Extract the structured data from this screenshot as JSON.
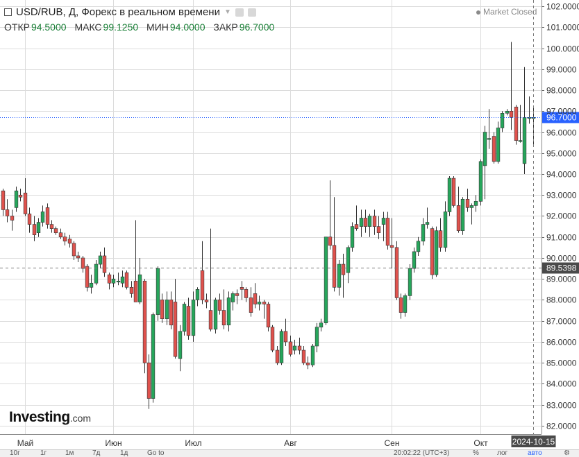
{
  "header": {
    "title": "USD/RUB, Д, Форекс в реальном времени",
    "ohlc": [
      {
        "label": "ОТКР",
        "value": "94.5000"
      },
      {
        "label": "МАКС",
        "value": "99.1250"
      },
      {
        "label": "МИН",
        "value": "94.0000"
      },
      {
        "label": "ЗАКР",
        "value": "96.7000"
      }
    ],
    "market_status": "Market Closed"
  },
  "logo": {
    "brand": "Investing",
    "domain": ".com"
  },
  "bottom_bar": {
    "ranges": [
      "10г",
      "1г",
      "1м",
      "7д",
      "1д"
    ],
    "goto": "Go to",
    "time": "20:02:22 (UTC+3)",
    "percent": "%",
    "log": "лог",
    "auto": "авто"
  },
  "colors": {
    "up": "#26a65b",
    "down": "#e0524d",
    "wick": "#333333",
    "grid": "#dcdcdc",
    "price_label": "#2962ff"
  },
  "icons": [
    "settings-icon",
    "gear-icon"
  ],
  "chart_data": {
    "type": "candlestick",
    "symbol": "USD/RUB",
    "interval": "Д",
    "ylim": [
      81.6,
      102.3
    ],
    "y_ticks": [
      82.0,
      83.0,
      84.0,
      85.0,
      86.0,
      87.0,
      88.0,
      89.0,
      90.0,
      91.0,
      92.0,
      93.0,
      94.0,
      95.0,
      96.0,
      97.0,
      98.0,
      99.0,
      100.0,
      101.0,
      102.0
    ],
    "x_tick_labels": [
      "Май",
      "Июн",
      "Июл",
      "Авг",
      "Сен",
      "Окт"
    ],
    "x_tick_index": [
      5,
      25,
      43,
      65,
      88,
      108
    ],
    "crosshair": {
      "x_label": "2024-10-15",
      "x_index": 120,
      "y_value": 89.5398,
      "y_label": "89.5398"
    },
    "last_price": {
      "value": 96.7,
      "label": "96.7000"
    },
    "candles": [
      {
        "o": 93.2,
        "h": 93.3,
        "l": 92.0,
        "c": 92.3
      },
      {
        "o": 92.3,
        "h": 92.8,
        "l": 91.7,
        "c": 92.0
      },
      {
        "o": 92.0,
        "h": 92.3,
        "l": 91.3,
        "c": 91.8
      },
      {
        "o": 92.4,
        "h": 93.4,
        "l": 92.2,
        "c": 93.2
      },
      {
        "o": 93.0,
        "h": 93.3,
        "l": 92.7,
        "c": 92.9
      },
      {
        "o": 93.1,
        "h": 93.8,
        "l": 92.0,
        "c": 92.1
      },
      {
        "o": 92.1,
        "h": 92.4,
        "l": 91.2,
        "c": 91.6
      },
      {
        "o": 91.6,
        "h": 92.0,
        "l": 90.8,
        "c": 91.1
      },
      {
        "o": 91.2,
        "h": 91.9,
        "l": 91.0,
        "c": 91.7
      },
      {
        "o": 91.7,
        "h": 92.5,
        "l": 91.5,
        "c": 92.2
      },
      {
        "o": 92.4,
        "h": 92.6,
        "l": 91.4,
        "c": 91.6
      },
      {
        "o": 91.6,
        "h": 91.8,
        "l": 91.2,
        "c": 91.4
      },
      {
        "o": 91.4,
        "h": 91.5,
        "l": 91.1,
        "c": 91.2
      },
      {
        "o": 91.2,
        "h": 91.4,
        "l": 90.9,
        "c": 91.0
      },
      {
        "o": 91.0,
        "h": 91.2,
        "l": 90.6,
        "c": 90.8
      },
      {
        "o": 90.9,
        "h": 91.1,
        "l": 90.5,
        "c": 90.7
      },
      {
        "o": 90.7,
        "h": 90.8,
        "l": 89.9,
        "c": 90.1
      },
      {
        "o": 90.1,
        "h": 90.3,
        "l": 89.8,
        "c": 90.0
      },
      {
        "o": 90.0,
        "h": 90.1,
        "l": 89.3,
        "c": 89.5
      },
      {
        "o": 89.6,
        "h": 89.7,
        "l": 88.4,
        "c": 88.6
      },
      {
        "o": 88.6,
        "h": 89.2,
        "l": 88.3,
        "c": 88.8
      },
      {
        "o": 88.8,
        "h": 89.9,
        "l": 88.7,
        "c": 89.7
      },
      {
        "o": 89.7,
        "h": 90.3,
        "l": 89.5,
        "c": 90.1
      },
      {
        "o": 90.1,
        "h": 90.5,
        "l": 89.1,
        "c": 89.3
      },
      {
        "o": 89.2,
        "h": 89.3,
        "l": 88.5,
        "c": 88.8
      },
      {
        "o": 88.8,
        "h": 89.2,
        "l": 88.6,
        "c": 89.0
      },
      {
        "o": 88.9,
        "h": 89.3,
        "l": 88.7,
        "c": 88.9
      },
      {
        "o": 88.8,
        "h": 89.4,
        "l": 88.6,
        "c": 89.1
      },
      {
        "o": 89.3,
        "h": 89.4,
        "l": 88.5,
        "c": 88.6
      },
      {
        "o": 88.6,
        "h": 88.9,
        "l": 88.1,
        "c": 88.3
      },
      {
        "o": 88.9,
        "h": 91.8,
        "l": 87.9,
        "c": 87.9
      },
      {
        "o": 87.9,
        "h": 90.0,
        "l": 87.8,
        "c": 89.2
      },
      {
        "o": 88.9,
        "h": 89.0,
        "l": 84.5,
        "c": 85.0
      },
      {
        "o": 85.0,
        "h": 85.4,
        "l": 82.8,
        "c": 83.3
      },
      {
        "o": 83.3,
        "h": 87.4,
        "l": 83.1,
        "c": 87.3
      },
      {
        "o": 87.3,
        "h": 89.6,
        "l": 87.0,
        "c": 89.5
      },
      {
        "o": 88.0,
        "h": 88.3,
        "l": 86.9,
        "c": 87.1
      },
      {
        "o": 87.1,
        "h": 88.4,
        "l": 86.8,
        "c": 88.0
      },
      {
        "o": 88.0,
        "h": 88.4,
        "l": 86.6,
        "c": 86.8
      },
      {
        "o": 87.9,
        "h": 89.0,
        "l": 85.2,
        "c": 85.3
      },
      {
        "o": 85.2,
        "h": 86.8,
        "l": 84.6,
        "c": 86.5
      },
      {
        "o": 86.5,
        "h": 87.9,
        "l": 86.3,
        "c": 87.8
      },
      {
        "o": 87.7,
        "h": 88.1,
        "l": 86.1,
        "c": 86.3
      },
      {
        "o": 86.3,
        "h": 88.4,
        "l": 86.0,
        "c": 88.0
      },
      {
        "o": 88.0,
        "h": 88.6,
        "l": 87.7,
        "c": 88.5
      },
      {
        "o": 89.4,
        "h": 90.8,
        "l": 87.8,
        "c": 88.0
      },
      {
        "o": 88.0,
        "h": 88.3,
        "l": 87.6,
        "c": 87.9
      },
      {
        "o": 87.5,
        "h": 91.4,
        "l": 86.5,
        "c": 86.6
      },
      {
        "o": 86.6,
        "h": 88.1,
        "l": 86.4,
        "c": 88.0
      },
      {
        "o": 88.0,
        "h": 88.3,
        "l": 87.3,
        "c": 87.5
      },
      {
        "o": 87.5,
        "h": 88.5,
        "l": 86.6,
        "c": 86.8
      },
      {
        "o": 86.8,
        "h": 88.4,
        "l": 86.5,
        "c": 88.1
      },
      {
        "o": 87.9,
        "h": 88.4,
        "l": 87.5,
        "c": 88.3
      },
      {
        "o": 88.3,
        "h": 88.5,
        "l": 87.8,
        "c": 88.2
      },
      {
        "o": 88.6,
        "h": 88.9,
        "l": 88.0,
        "c": 88.5
      },
      {
        "o": 88.5,
        "h": 88.6,
        "l": 87.9,
        "c": 88.1
      },
      {
        "o": 88.1,
        "h": 88.6,
        "l": 87.2,
        "c": 87.4
      },
      {
        "o": 88.3,
        "h": 88.8,
        "l": 87.6,
        "c": 87.8
      },
      {
        "o": 87.8,
        "h": 88.2,
        "l": 87.5,
        "c": 87.9
      },
      {
        "o": 87.9,
        "h": 88.0,
        "l": 87.1,
        "c": 87.8
      },
      {
        "o": 87.8,
        "h": 87.9,
        "l": 86.5,
        "c": 86.7
      },
      {
        "o": 86.7,
        "h": 86.8,
        "l": 85.5,
        "c": 85.6
      },
      {
        "o": 85.6,
        "h": 85.8,
        "l": 84.9,
        "c": 85.0
      },
      {
        "o": 85.0,
        "h": 86.6,
        "l": 84.9,
        "c": 86.5
      },
      {
        "o": 86.5,
        "h": 87.1,
        "l": 85.8,
        "c": 86.0
      },
      {
        "o": 86.0,
        "h": 86.3,
        "l": 85.3,
        "c": 85.4
      },
      {
        "o": 85.6,
        "h": 86.1,
        "l": 85.4,
        "c": 85.8
      },
      {
        "o": 85.8,
        "h": 86.2,
        "l": 85.4,
        "c": 85.6
      },
      {
        "o": 85.6,
        "h": 85.8,
        "l": 84.9,
        "c": 85.0
      },
      {
        "o": 85.0,
        "h": 85.3,
        "l": 84.7,
        "c": 84.9
      },
      {
        "o": 84.9,
        "h": 85.9,
        "l": 84.8,
        "c": 85.8
      },
      {
        "o": 85.8,
        "h": 86.9,
        "l": 85.5,
        "c": 86.7
      },
      {
        "o": 86.7,
        "h": 87.1,
        "l": 86.5,
        "c": 86.9
      },
      {
        "o": 86.9,
        "h": 91.0,
        "l": 86.8,
        "c": 91.0
      },
      {
        "o": 91.0,
        "h": 93.7,
        "l": 90.4,
        "c": 90.6
      },
      {
        "o": 90.6,
        "h": 92.9,
        "l": 88.4,
        "c": 88.6
      },
      {
        "o": 88.6,
        "h": 89.9,
        "l": 88.2,
        "c": 89.7
      },
      {
        "o": 89.7,
        "h": 90.2,
        "l": 88.1,
        "c": 89.2
      },
      {
        "o": 89.3,
        "h": 90.6,
        "l": 88.8,
        "c": 90.5
      },
      {
        "o": 90.5,
        "h": 91.7,
        "l": 90.3,
        "c": 91.5
      },
      {
        "o": 91.6,
        "h": 92.5,
        "l": 91.3,
        "c": 91.4
      },
      {
        "o": 91.5,
        "h": 92.3,
        "l": 91.0,
        "c": 91.9
      },
      {
        "o": 91.9,
        "h": 92.3,
        "l": 91.2,
        "c": 91.5
      },
      {
        "o": 91.5,
        "h": 92.1,
        "l": 91.0,
        "c": 92.0
      },
      {
        "o": 92.0,
        "h": 92.3,
        "l": 91.1,
        "c": 91.5
      },
      {
        "o": 91.5,
        "h": 92.0,
        "l": 90.9,
        "c": 91.2
      },
      {
        "o": 91.6,
        "h": 92.2,
        "l": 90.8,
        "c": 91.9
      },
      {
        "o": 91.9,
        "h": 92.2,
        "l": 90.4,
        "c": 90.6
      },
      {
        "o": 90.6,
        "h": 91.9,
        "l": 89.5,
        "c": 90.5
      },
      {
        "o": 90.5,
        "h": 90.8,
        "l": 88.0,
        "c": 88.1
      },
      {
        "o": 88.1,
        "h": 88.3,
        "l": 87.1,
        "c": 87.4
      },
      {
        "o": 87.4,
        "h": 88.3,
        "l": 87.2,
        "c": 88.2
      },
      {
        "o": 88.2,
        "h": 89.7,
        "l": 88.0,
        "c": 89.5
      },
      {
        "o": 89.5,
        "h": 90.5,
        "l": 89.3,
        "c": 90.3
      },
      {
        "o": 90.3,
        "h": 91.0,
        "l": 90.1,
        "c": 90.8
      },
      {
        "o": 90.8,
        "h": 91.9,
        "l": 90.6,
        "c": 91.6
      },
      {
        "o": 91.6,
        "h": 92.4,
        "l": 91.4,
        "c": 91.7
      },
      {
        "o": 91.4,
        "h": 91.5,
        "l": 89.0,
        "c": 89.2
      },
      {
        "o": 89.2,
        "h": 91.5,
        "l": 89.1,
        "c": 91.3
      },
      {
        "o": 91.3,
        "h": 91.9,
        "l": 90.3,
        "c": 90.5
      },
      {
        "o": 90.5,
        "h": 92.7,
        "l": 90.3,
        "c": 92.2
      },
      {
        "o": 92.2,
        "h": 93.9,
        "l": 92.0,
        "c": 93.8
      },
      {
        "o": 93.8,
        "h": 93.9,
        "l": 92.4,
        "c": 92.5
      },
      {
        "o": 92.5,
        "h": 93.4,
        "l": 91.2,
        "c": 91.3
      },
      {
        "o": 91.3,
        "h": 92.9,
        "l": 91.1,
        "c": 92.8
      },
      {
        "o": 92.8,
        "h": 93.3,
        "l": 92.2,
        "c": 92.4
      },
      {
        "o": 92.4,
        "h": 92.6,
        "l": 91.6,
        "c": 92.5
      },
      {
        "o": 92.5,
        "h": 93.0,
        "l": 92.2,
        "c": 92.7
      },
      {
        "o": 92.7,
        "h": 94.7,
        "l": 92.5,
        "c": 94.6
      },
      {
        "o": 94.4,
        "h": 96.3,
        "l": 92.8,
        "c": 96.0
      },
      {
        "o": 95.7,
        "h": 97.1,
        "l": 95.2,
        "c": 95.7
      },
      {
        "o": 95.8,
        "h": 96.0,
        "l": 94.5,
        "c": 94.6
      },
      {
        "o": 94.6,
        "h": 96.5,
        "l": 94.5,
        "c": 96.2
      },
      {
        "o": 96.2,
        "h": 97.0,
        "l": 96.0,
        "c": 96.9
      },
      {
        "o": 96.9,
        "h": 97.1,
        "l": 96.8,
        "c": 97.0
      },
      {
        "o": 97.0,
        "h": 100.3,
        "l": 96.1,
        "c": 96.7
      },
      {
        "o": 97.2,
        "h": 97.3,
        "l": 95.4,
        "c": 95.6
      },
      {
        "o": 95.6,
        "h": 97.3,
        "l": 95.5,
        "c": 95.6
      },
      {
        "o": 94.5,
        "h": 99.1,
        "l": 94.0,
        "c": 96.7
      },
      {
        "o": 96.7,
        "h": 97.7,
        "l": 96.4,
        "c": 96.7
      },
      {
        "o": 96.7,
        "h": 97.2,
        "l": 95.3,
        "c": 96.7
      }
    ]
  }
}
